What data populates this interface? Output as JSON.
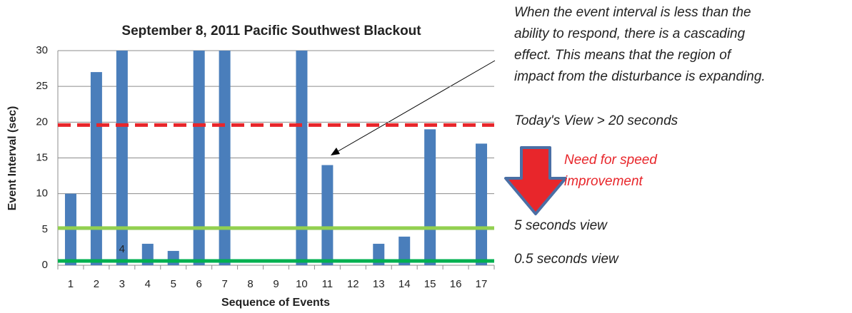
{
  "chart_data": {
    "type": "bar",
    "title": "September 8, 2011 Pacific Southwest Blackout",
    "xlabel": "Sequence of Events",
    "ylabel": "Event Interval (sec)",
    "categories": [
      "1",
      "2",
      "3",
      "4",
      "5",
      "6",
      "7",
      "8",
      "9",
      "10",
      "11",
      "12",
      "13",
      "14",
      "15",
      "16",
      "17"
    ],
    "values": [
      10,
      27,
      30,
      3,
      2,
      30,
      30,
      0,
      0,
      30,
      14,
      0,
      3,
      4,
      19,
      0,
      17
    ],
    "color": "#4a7ebb",
    "ylim": [
      0,
      30
    ],
    "yticks": [
      0,
      5,
      10,
      15,
      20,
      25,
      30
    ],
    "grid": true,
    "bar_label": {
      "category_index": 2,
      "text": "4"
    },
    "reference_lines": [
      {
        "value": 19.6,
        "color": "#e8262b",
        "style": "dashed"
      },
      {
        "value": 5.2,
        "color": "#92d050",
        "style": "solid"
      },
      {
        "value": 0.6,
        "color": "#00b050",
        "style": "solid"
      }
    ],
    "note_lines": [
      "When the event interval is less than the",
      "ability to respond, there is a cascading",
      "effect. This means that the region of",
      "impact from the disturbance is expanding."
    ],
    "views": [
      "Today's View > 20 seconds",
      "5 seconds view",
      "0.5 seconds view"
    ],
    "improvement_lines": [
      "Need for speed",
      "improvement"
    ]
  }
}
